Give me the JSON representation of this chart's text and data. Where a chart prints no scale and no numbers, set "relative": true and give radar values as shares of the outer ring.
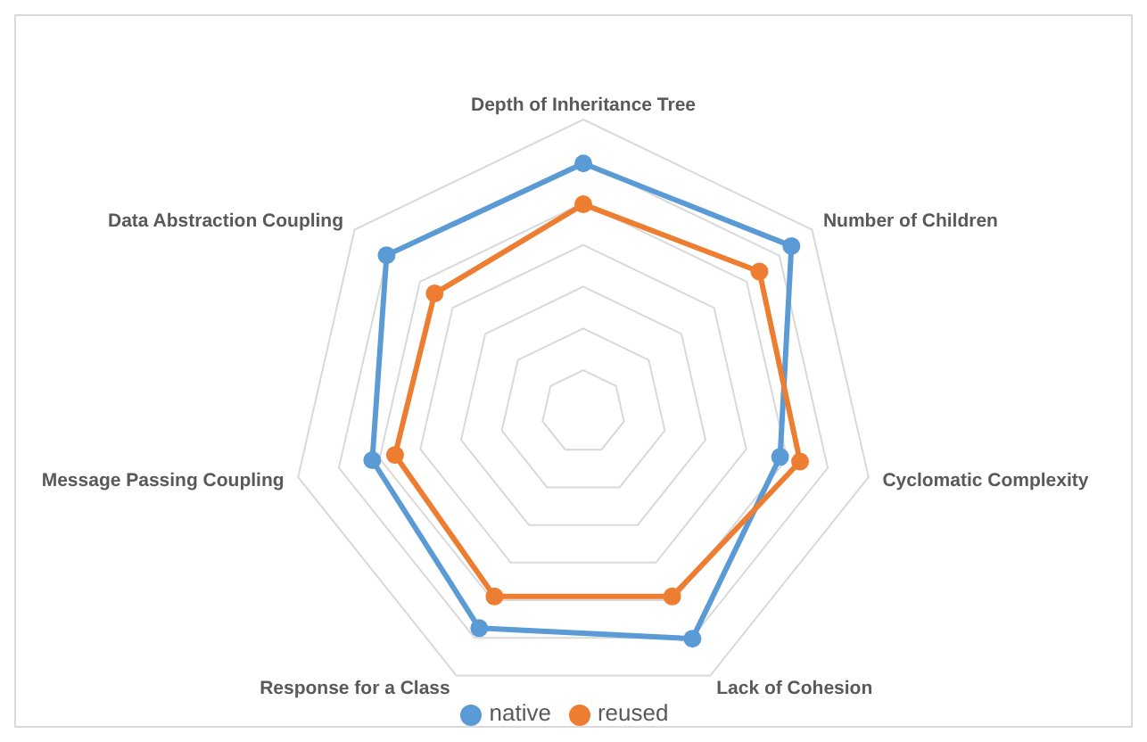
{
  "chart_data": {
    "type": "radar",
    "relative": true,
    "categories": [
      "Depth of Inheritance Tree",
      "Number of Children",
      "Cyclomatic Complexity",
      "Lack of Cohesion",
      "Response for a Class",
      "Message Passing Coupling",
      "Data Abstraction Coupling"
    ],
    "series": [
      {
        "name": "native",
        "color": "#5b9bd5",
        "values": [
          0.85,
          0.91,
          0.69,
          0.86,
          0.82,
          0.74,
          0.86
        ]
      },
      {
        "name": "reused",
        "color": "#ed7d31",
        "values": [
          0.71,
          0.77,
          0.76,
          0.7,
          0.7,
          0.66,
          0.65
        ]
      }
    ],
    "legend": "bottom",
    "marker": "circle",
    "grid": true
  }
}
